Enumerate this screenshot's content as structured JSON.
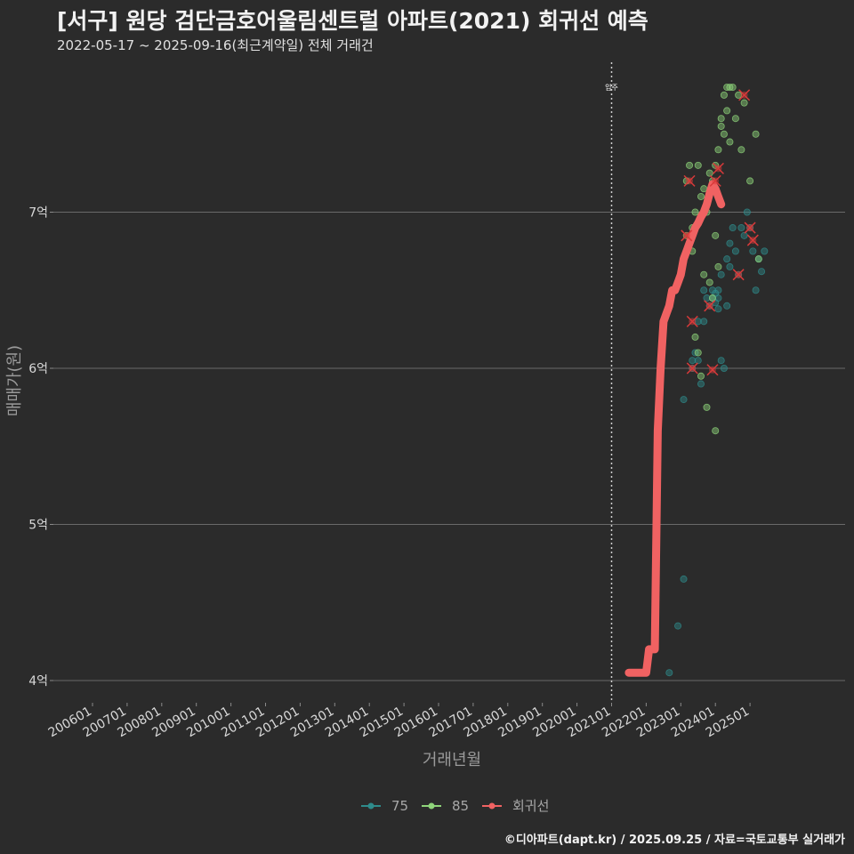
{
  "header": {
    "title": "[서구] 원당 검단금호어울림센트럴 아파트(2021) 회귀선 예측",
    "subtitle": "2022-05-17 ~ 2025-09-16(최근계약일) 전체 거래건"
  },
  "credit": "©디아파트(dapt.kr) / 2025.09.25 / 자료=국토교통부 실거래가",
  "chart_data": {
    "type": "scatter",
    "xlabel": "거래년월",
    "ylabel": "매매가(원)",
    "x_ticks": [
      "200601",
      "200701",
      "200801",
      "200901",
      "201001",
      "201101",
      "201201",
      "201301",
      "201401",
      "201501",
      "201601",
      "201701",
      "201801",
      "201901",
      "202001",
      "202101",
      "202201",
      "202301",
      "202401",
      "202501"
    ],
    "y_ticks": [
      {
        "value": 4.0,
        "label": "4억"
      },
      {
        "value": 5.0,
        "label": "5억"
      },
      {
        "value": 6.0,
        "label": "6억"
      },
      {
        "value": 7.0,
        "label": "7억"
      }
    ],
    "ylim": [
      3.88,
      7.95
    ],
    "grid": true,
    "legend_position": "bottom",
    "vline": {
      "date": "2021-01",
      "label": "입주"
    },
    "colors": {
      "75": "#2e8b8b",
      "85": "#8fd47a",
      "regression": "#f06262",
      "outlier": "#d93a3a"
    },
    "series": [
      {
        "name": "75",
        "points": [
          [
            "2022-09",
            4.05
          ],
          [
            "2022-12",
            4.35
          ],
          [
            "2023-02",
            4.65
          ],
          [
            "2023-02",
            5.8
          ],
          [
            "2023-05",
            6.0
          ],
          [
            "2023-05",
            6.05
          ],
          [
            "2023-06",
            6.1
          ],
          [
            "2023-07",
            6.05
          ],
          [
            "2023-07",
            6.3
          ],
          [
            "2023-08",
            5.9
          ],
          [
            "2023-09",
            6.5
          ],
          [
            "2023-09",
            6.3
          ],
          [
            "2023-10",
            6.45
          ],
          [
            "2023-11",
            6.4
          ],
          [
            "2023-12",
            6.45
          ],
          [
            "2023-12",
            6.5
          ],
          [
            "2024-01",
            6.42
          ],
          [
            "2024-01",
            6.48
          ],
          [
            "2024-02",
            6.45
          ],
          [
            "2024-02",
            6.5
          ],
          [
            "2024-02",
            6.38
          ],
          [
            "2024-03",
            6.6
          ],
          [
            "2024-03",
            6.05
          ],
          [
            "2024-04",
            6.0
          ],
          [
            "2024-05",
            6.7
          ],
          [
            "2024-05",
            6.4
          ],
          [
            "2024-06",
            6.8
          ],
          [
            "2024-06",
            6.65
          ],
          [
            "2024-07",
            6.9
          ],
          [
            "2024-08",
            6.75
          ],
          [
            "2024-09",
            6.6
          ],
          [
            "2024-10",
            6.9
          ],
          [
            "2024-11",
            6.85
          ],
          [
            "2024-12",
            7.0
          ],
          [
            "2025-01",
            6.9
          ],
          [
            "2025-02",
            6.75
          ],
          [
            "2025-03",
            6.5
          ],
          [
            "2025-04",
            6.7
          ],
          [
            "2025-05",
            6.62
          ],
          [
            "2025-06",
            6.75
          ]
        ]
      },
      {
        "name": "85",
        "points": [
          [
            "2023-02",
            6.7
          ],
          [
            "2023-03",
            6.85
          ],
          [
            "2023-03",
            7.2
          ],
          [
            "2023-04",
            6.8
          ],
          [
            "2023-04",
            7.3
          ],
          [
            "2023-05",
            6.9
          ],
          [
            "2023-05",
            6.75
          ],
          [
            "2023-06",
            7.0
          ],
          [
            "2023-06",
            6.2
          ],
          [
            "2023-07",
            6.1
          ],
          [
            "2023-07",
            7.3
          ],
          [
            "2023-08",
            7.1
          ],
          [
            "2023-08",
            5.95
          ],
          [
            "2023-09",
            7.15
          ],
          [
            "2023-09",
            6.6
          ],
          [
            "2023-10",
            7.0
          ],
          [
            "2023-10",
            5.75
          ],
          [
            "2023-11",
            7.25
          ],
          [
            "2023-11",
            6.55
          ],
          [
            "2023-12",
            7.2
          ],
          [
            "2023-12",
            6.45
          ],
          [
            "2024-01",
            7.3
          ],
          [
            "2024-01",
            6.85
          ],
          [
            "2024-01",
            5.6
          ],
          [
            "2024-02",
            7.4
          ],
          [
            "2024-02",
            6.65
          ],
          [
            "2024-03",
            7.6
          ],
          [
            "2024-03",
            7.55
          ],
          [
            "2024-04",
            7.75
          ],
          [
            "2024-04",
            7.5
          ],
          [
            "2024-05",
            7.8
          ],
          [
            "2024-05",
            7.65
          ],
          [
            "2024-06",
            7.8
          ],
          [
            "2024-06",
            7.45
          ],
          [
            "2024-07",
            7.8
          ],
          [
            "2024-08",
            7.6
          ],
          [
            "2024-09",
            7.75
          ],
          [
            "2024-10",
            7.4
          ],
          [
            "2024-11",
            7.7
          ],
          [
            "2025-01",
            7.2
          ],
          [
            "2025-03",
            7.5
          ],
          [
            "2025-04",
            6.7
          ]
        ]
      },
      {
        "name": "회귀선",
        "points": [
          [
            "2021-07",
            4.05
          ],
          [
            "2021-08",
            4.05
          ],
          [
            "2021-09",
            4.05
          ],
          [
            "2021-10",
            4.05
          ],
          [
            "2021-11",
            4.05
          ],
          [
            "2021-12",
            4.05
          ],
          [
            "2022-01",
            4.05
          ],
          [
            "2022-02",
            4.2
          ],
          [
            "2022-03",
            4.2
          ],
          [
            "2022-04",
            4.2
          ],
          [
            "2022-05",
            5.6
          ],
          [
            "2022-06",
            6.0
          ],
          [
            "2022-07",
            6.3
          ],
          [
            "2022-08",
            6.35
          ],
          [
            "2022-09",
            6.4
          ],
          [
            "2022-10",
            6.5
          ],
          [
            "2022-11",
            6.5
          ],
          [
            "2022-12",
            6.55
          ],
          [
            "2023-01",
            6.6
          ],
          [
            "2023-02",
            6.7
          ],
          [
            "2023-03",
            6.75
          ],
          [
            "2023-04",
            6.8
          ],
          [
            "2023-05",
            6.85
          ],
          [
            "2023-06",
            6.9
          ],
          [
            "2023-07",
            6.93
          ],
          [
            "2023-08",
            6.97
          ],
          [
            "2023-09",
            7.0
          ],
          [
            "2023-10",
            7.05
          ],
          [
            "2023-11",
            7.12
          ],
          [
            "2023-12",
            7.18
          ],
          [
            "2024-01",
            7.15
          ],
          [
            "2024-02",
            7.1
          ],
          [
            "2024-03",
            7.05
          ]
        ]
      }
    ],
    "outliers": [
      [
        "2023-03",
        6.85
      ],
      [
        "2023-04",
        7.2
      ],
      [
        "2023-05",
        6.3
      ],
      [
        "2023-05",
        6.0
      ],
      [
        "2023-11",
        6.4
      ],
      [
        "2023-12",
        5.99
      ],
      [
        "2024-01",
        7.2
      ],
      [
        "2024-02",
        7.28
      ],
      [
        "2024-09",
        6.6
      ],
      [
        "2024-11",
        7.75
      ],
      [
        "2025-01",
        6.9
      ],
      [
        "2025-02",
        6.82
      ]
    ]
  }
}
